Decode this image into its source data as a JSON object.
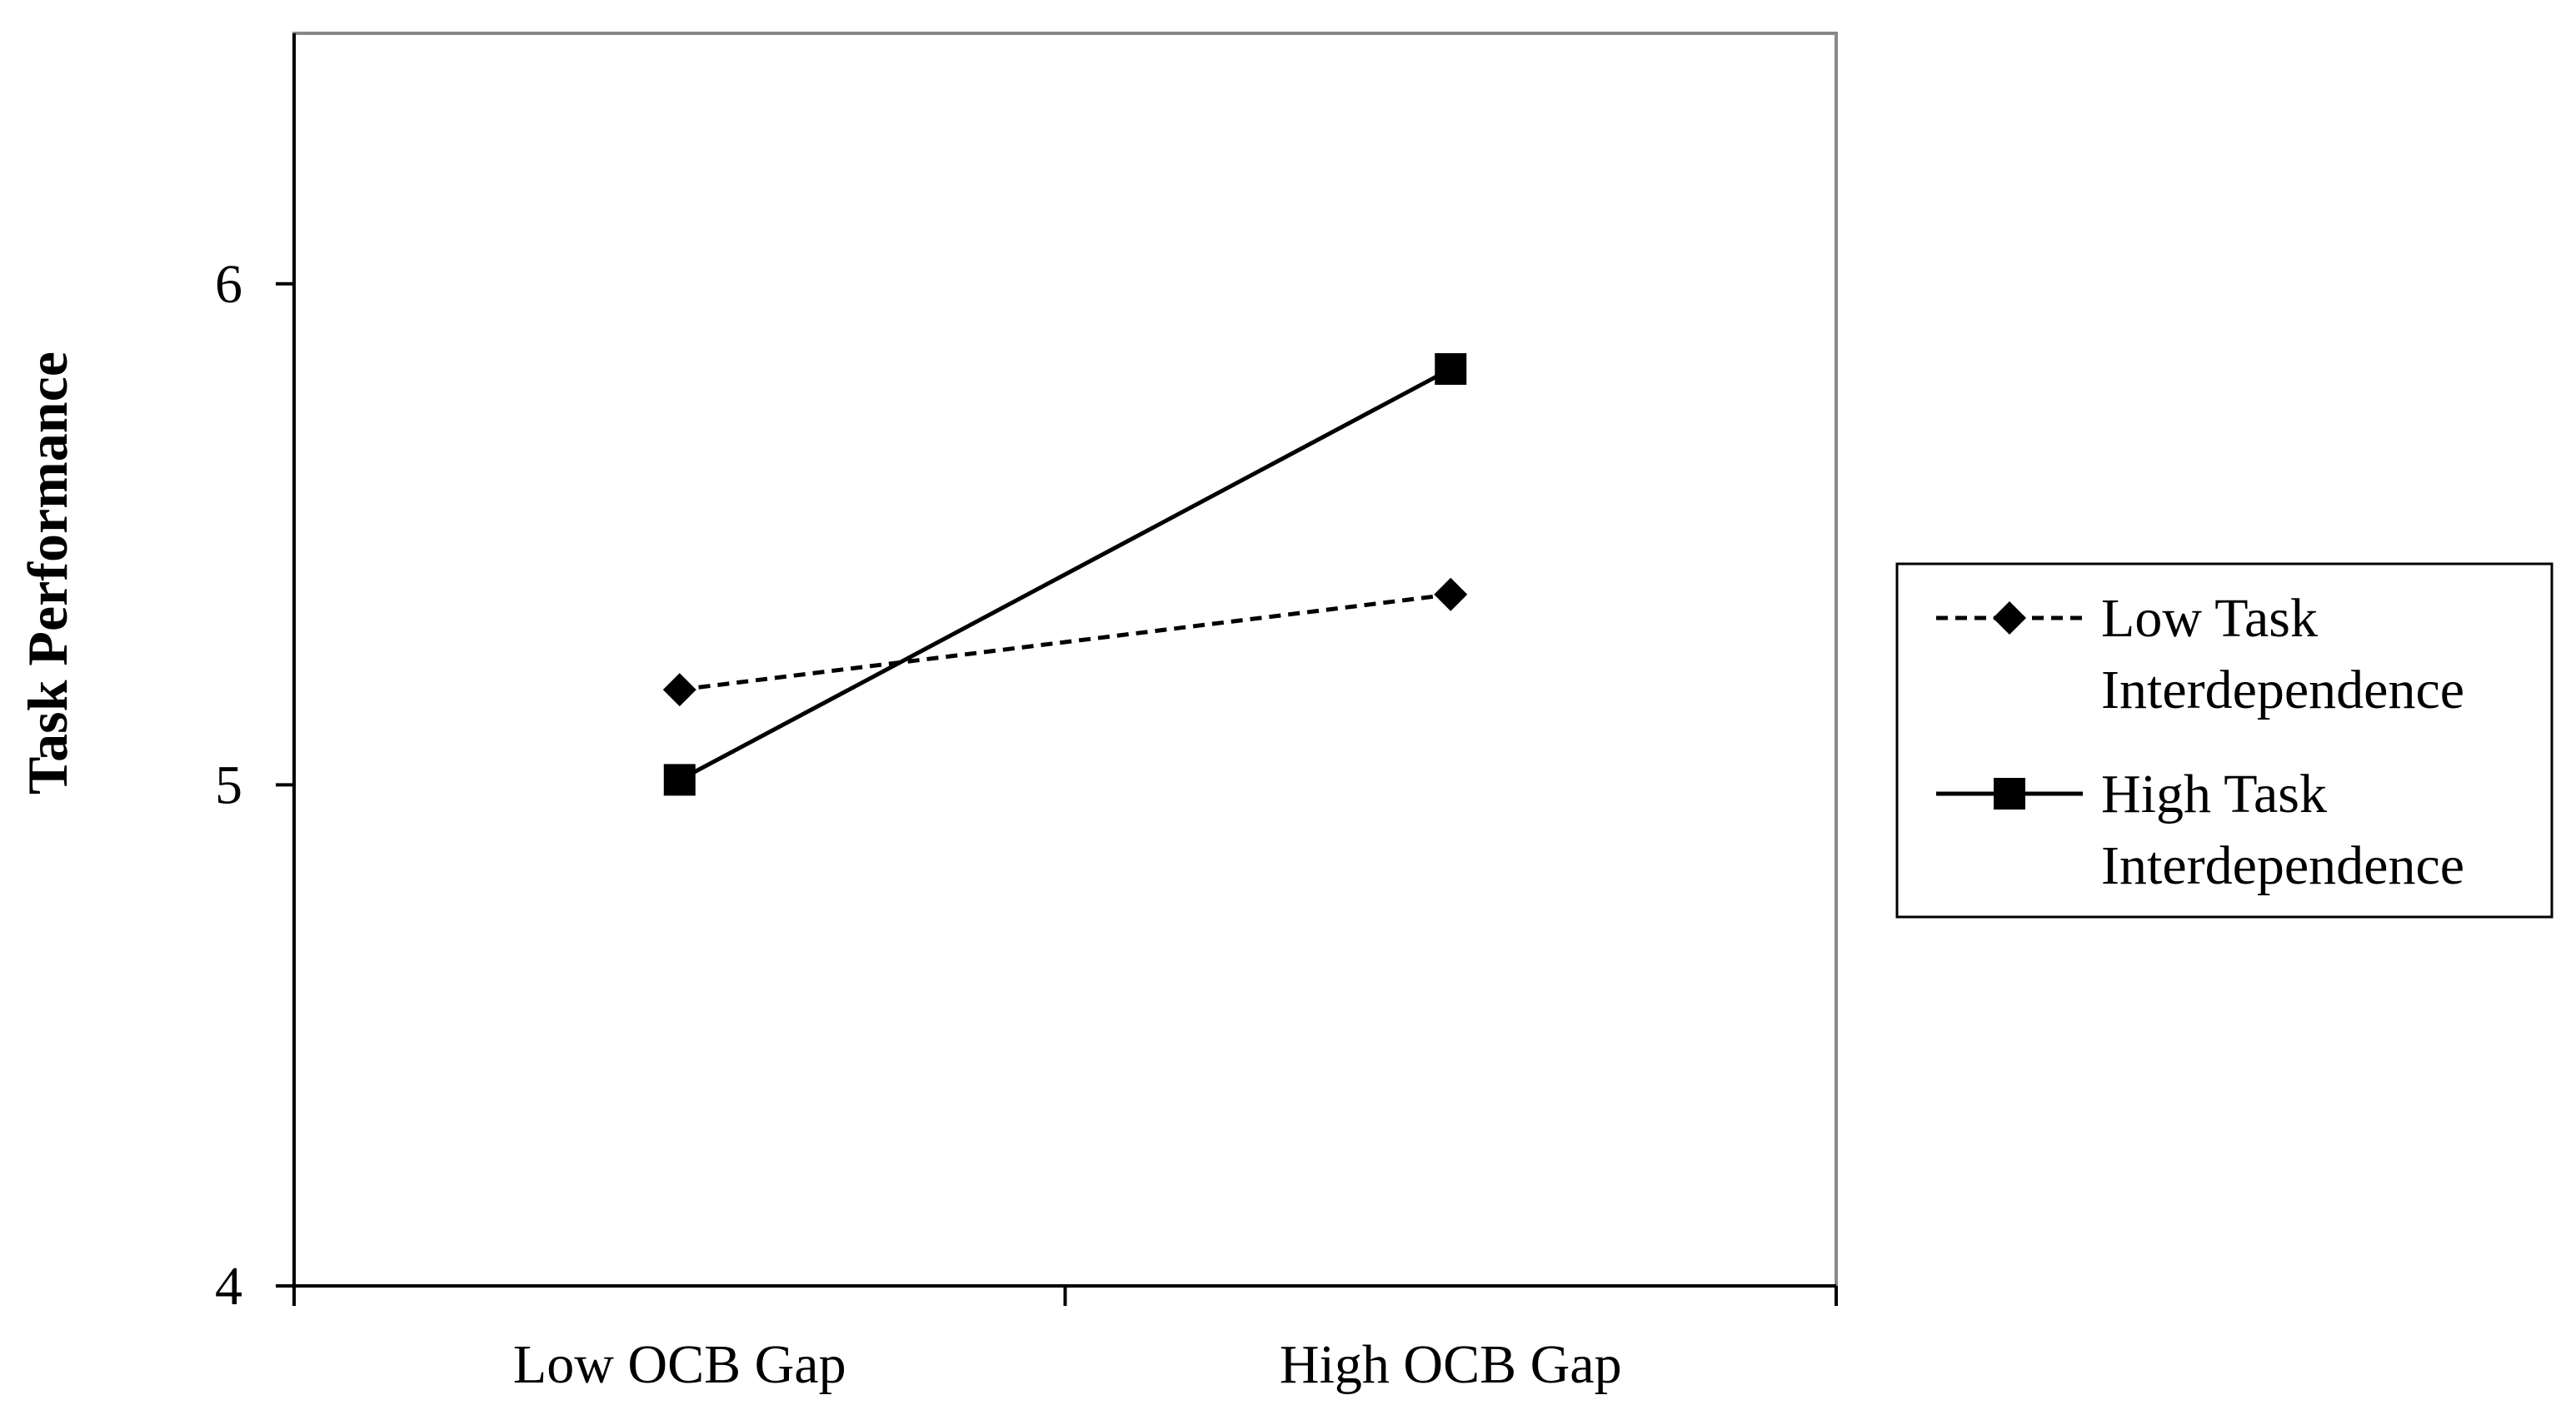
{
  "chart_data": {
    "type": "line",
    "title": "",
    "xlabel": "",
    "ylabel": "Task Performance",
    "categories": [
      "Low OCB Gap",
      "High OCB Gap"
    ],
    "ylim": [
      4,
      6.5
    ],
    "yticks": [
      4,
      5,
      6
    ],
    "yticklabels": [
      "4",
      "5",
      "6"
    ],
    "grid": false,
    "legend_position": "right",
    "series": [
      {
        "name": "Low Task Interdependence",
        "legend_lines": [
          "Low Task",
          "Interdependence"
        ],
        "values": [
          5.19,
          5.38
        ],
        "line_style": "dashed",
        "marker": "diamond",
        "color": "#000000"
      },
      {
        "name": "High Task Interdependence",
        "legend_lines": [
          "High Task",
          "Interdependence"
        ],
        "values": [
          5.01,
          5.83
        ],
        "line_style": "solid",
        "marker": "square",
        "color": "#000000"
      }
    ]
  }
}
